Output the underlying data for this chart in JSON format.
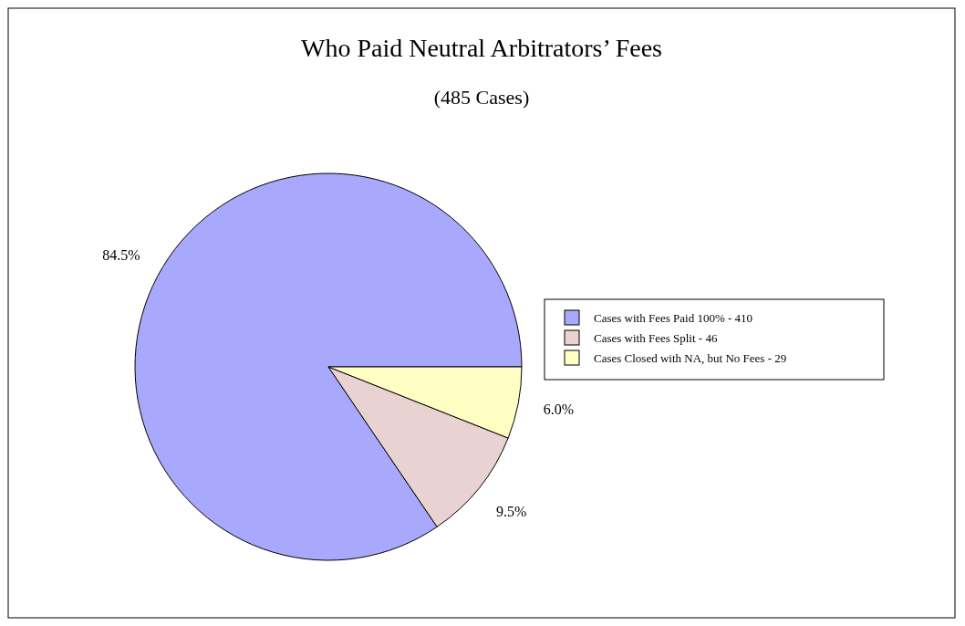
{
  "chart_data": {
    "type": "pie",
    "title": "Who Paid Neutral Arbitrators’ Fees",
    "subtitle": "(485 Cases)",
    "categories": [
      "Cases with Fees Paid 100% - 410",
      "Cases with Fees Split - 46",
      "Cases Closed with NA, but No Fees - 29"
    ],
    "values": [
      84.5,
      9.5,
      6.0
    ],
    "value_labels": [
      "84.5%",
      "9.5%",
      "6.0%"
    ],
    "colors": [
      "#a8a8fc",
      "#e8d2d2",
      "#ffffc4"
    ],
    "legend": "right"
  }
}
